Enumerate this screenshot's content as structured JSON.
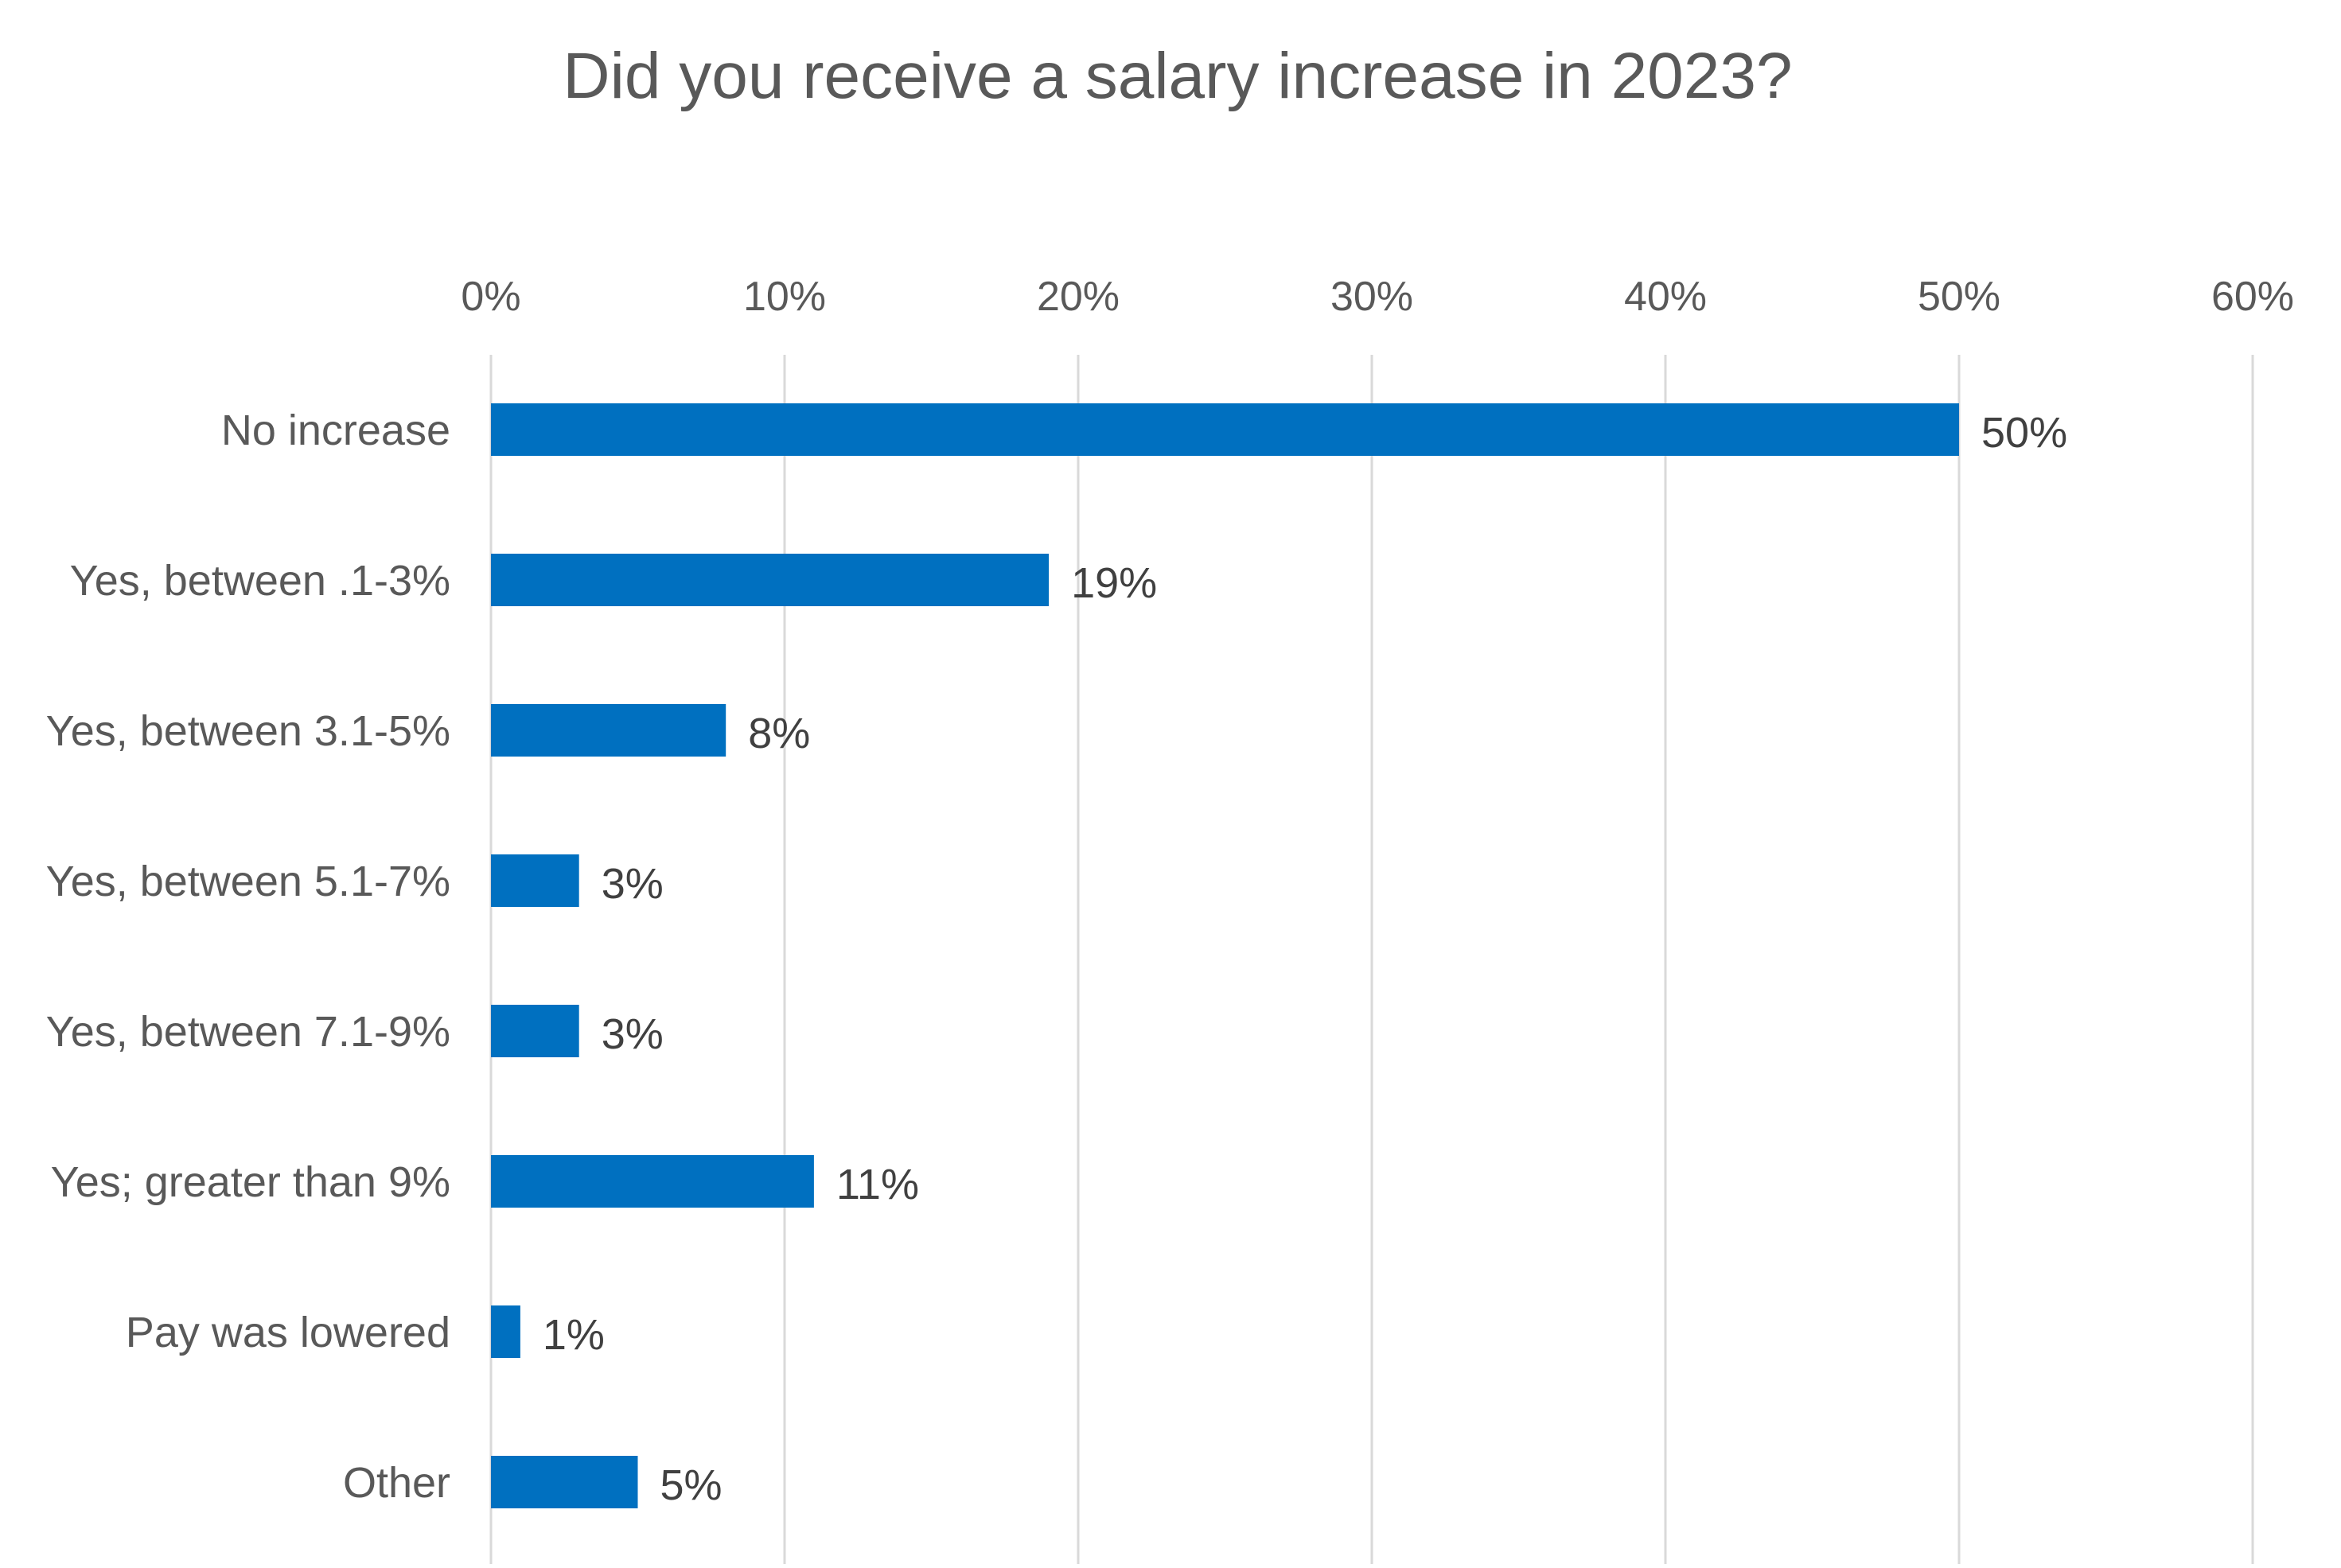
{
  "chart_data": {
    "type": "bar",
    "orientation": "horizontal",
    "title": "Did you receive a salary increase in 2023?",
    "categories": [
      "No increase",
      "Yes, between .1-3%",
      "Yes, between 3.1-5%",
      "Yes, between 5.1-7%",
      "Yes, between 7.1-9%",
      "Yes; greater than 9%",
      "Pay was lowered",
      "Other"
    ],
    "values": [
      50,
      19,
      8,
      3,
      3,
      11,
      1,
      5
    ],
    "data_labels": [
      "50%",
      "19%",
      "8%",
      "3%",
      "3%",
      "11%",
      "1%",
      "5%"
    ],
    "xlim": [
      0,
      60
    ],
    "xticks": [
      0,
      10,
      20,
      30,
      40,
      50,
      60
    ],
    "xtick_labels": [
      "0%",
      "10%",
      "20%",
      "30%",
      "40%",
      "50%",
      "60%"
    ],
    "x_axis_position": "top",
    "grid": true,
    "legend": "none",
    "colors": {
      "bar": "#0070C0",
      "text": "#595959",
      "label": "#404040",
      "grid": "#D9D9D9"
    }
  }
}
